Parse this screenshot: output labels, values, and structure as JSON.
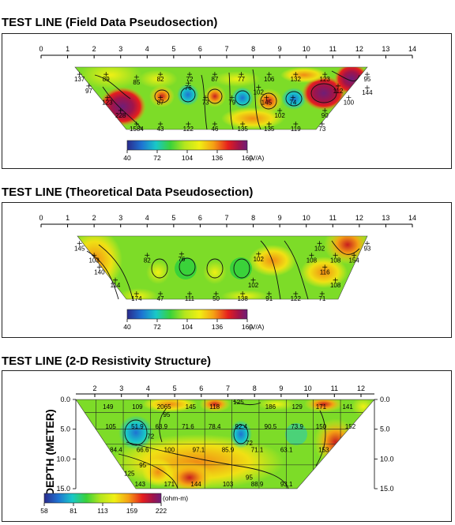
{
  "panels": [
    {
      "title": "TEST LINE (Field Data Pseudosection)"
    },
    {
      "title": "TEST LINE (Theoretical Data Pseudosection)"
    },
    {
      "title": "TEST LINE (2-D Resistivity Structure)"
    }
  ],
  "colors": {
    "scale": [
      "#2a2a8c",
      "#1e73d2",
      "#19c8c8",
      "#3ad23a",
      "#b4e61e",
      "#f0f014",
      "#f5a014",
      "#e61e1e",
      "#a0144b",
      "#6e1e78"
    ]
  },
  "chart_data": [
    {
      "type": "heatmap",
      "title": "TEST LINE (Field Data Pseudosection)",
      "x_ticks": [
        0,
        1,
        2,
        3,
        4,
        5,
        6,
        7,
        8,
        9,
        10,
        11,
        12,
        13,
        14
      ],
      "xlim": [
        0,
        14
      ],
      "colorbar": {
        "ticks": [
          "40",
          "72",
          "104",
          "136",
          "169"
        ],
        "unit": "(V/A)"
      },
      "value_labels": [
        {
          "x": 1.45,
          "level": 0.15,
          "text": "137"
        },
        {
          "x": 2.45,
          "level": 0.15,
          "text": "89"
        },
        {
          "x": 3.6,
          "level": 0.2,
          "text": "85"
        },
        {
          "x": 4.5,
          "level": 0.15,
          "text": "82"
        },
        {
          "x": 5.6,
          "level": 0.15,
          "text": "72"
        },
        {
          "x": 6.55,
          "level": 0.15,
          "text": "87"
        },
        {
          "x": 7.55,
          "level": 0.15,
          "text": "77"
        },
        {
          "x": 8.6,
          "level": 0.15,
          "text": "106"
        },
        {
          "x": 9.6,
          "level": 0.15,
          "text": "132"
        },
        {
          "x": 10.7,
          "level": 0.15,
          "text": "123"
        },
        {
          "x": 12.3,
          "level": 0.15,
          "text": "95"
        },
        {
          "x": 1.8,
          "level": 0.35,
          "text": "97"
        },
        {
          "x": 5.55,
          "level": 0.3,
          "text": "76"
        },
        {
          "x": 11.2,
          "level": 0.35,
          "text": "112"
        },
        {
          "x": 12.3,
          "level": 0.38,
          "text": "144"
        },
        {
          "x": 8.2,
          "level": 0.37,
          "text": "102"
        },
        {
          "x": 2.5,
          "level": 0.55,
          "text": "123"
        },
        {
          "x": 4.5,
          "level": 0.55,
          "text": "87"
        },
        {
          "x": 6.2,
          "level": 0.55,
          "text": "73"
        },
        {
          "x": 7.2,
          "level": 0.55,
          "text": "79"
        },
        {
          "x": 8.5,
          "level": 0.55,
          "text": "145"
        },
        {
          "x": 9.5,
          "level": 0.55,
          "text": "74"
        },
        {
          "x": 11.6,
          "level": 0.55,
          "text": "100"
        },
        {
          "x": 3.0,
          "level": 0.77,
          "text": "228"
        },
        {
          "x": 9.0,
          "level": 0.77,
          "text": "102"
        },
        {
          "x": 10.7,
          "level": 0.77,
          "text": "90"
        },
        {
          "x": 3.6,
          "level": 1.0,
          "text": "1584"
        },
        {
          "x": 4.5,
          "level": 1.0,
          "text": "43"
        },
        {
          "x": 5.55,
          "level": 1.0,
          "text": "122"
        },
        {
          "x": 6.55,
          "level": 1.0,
          "text": "46"
        },
        {
          "x": 7.6,
          "level": 1.0,
          "text": "135"
        },
        {
          "x": 8.6,
          "level": 1.0,
          "text": "135"
        },
        {
          "x": 9.6,
          "level": 1.0,
          "text": "119"
        },
        {
          "x": 10.6,
          "level": 1.0,
          "text": "73"
        }
      ]
    },
    {
      "type": "heatmap",
      "title": "TEST LINE (Theoretical Data Pseudosection)",
      "x_ticks": [
        0,
        1,
        2,
        3,
        4,
        5,
        6,
        7,
        8,
        9,
        10,
        11,
        12,
        13,
        14
      ],
      "xlim": [
        0,
        14
      ],
      "colorbar": {
        "ticks": [
          "40",
          "72",
          "104",
          "136",
          "169"
        ],
        "unit": "(V/A)"
      },
      "value_labels": [
        {
          "x": 1.45,
          "level": 0.15,
          "text": "145"
        },
        {
          "x": 10.5,
          "level": 0.15,
          "text": "102"
        },
        {
          "x": 12.3,
          "level": 0.15,
          "text": "93"
        },
        {
          "x": 2.0,
          "level": 0.35,
          "text": "103"
        },
        {
          "x": 4.0,
          "level": 0.35,
          "text": "82"
        },
        {
          "x": 5.3,
          "level": 0.33,
          "text": "76"
        },
        {
          "x": 11.8,
          "level": 0.35,
          "text": "154"
        },
        {
          "x": 8.2,
          "level": 0.33,
          "text": "102"
        },
        {
          "x": 10.2,
          "level": 0.35,
          "text": "108"
        },
        {
          "x": 11.1,
          "level": 0.35,
          "text": "108"
        },
        {
          "x": 2.2,
          "level": 0.55,
          "text": "140"
        },
        {
          "x": 10.7,
          "level": 0.55,
          "text": "116"
        },
        {
          "x": 2.8,
          "level": 0.77,
          "text": "114"
        },
        {
          "x": 8.0,
          "level": 0.77,
          "text": "102"
        },
        {
          "x": 11.1,
          "level": 0.77,
          "text": "108"
        },
        {
          "x": 3.6,
          "level": 1.0,
          "text": "174"
        },
        {
          "x": 4.5,
          "level": 1.0,
          "text": "47"
        },
        {
          "x": 5.6,
          "level": 1.0,
          "text": "111"
        },
        {
          "x": 6.6,
          "level": 1.0,
          "text": "50"
        },
        {
          "x": 7.6,
          "level": 1.0,
          "text": "138"
        },
        {
          "x": 8.6,
          "level": 1.0,
          "text": "91"
        },
        {
          "x": 9.6,
          "level": 1.0,
          "text": "122"
        },
        {
          "x": 10.6,
          "level": 1.0,
          "text": "71"
        }
      ]
    },
    {
      "type": "heatmap",
      "title": "TEST LINE (2-D Resistivity Structure)",
      "x_ticks": [
        2,
        3,
        4,
        5,
        6,
        7,
        8,
        9,
        10,
        11,
        12
      ],
      "ylabel": "DEPTH (METER)",
      "y_ticks": [
        "0.0",
        "5.0",
        "10.0",
        "15.0"
      ],
      "ylim": [
        0,
        15
      ],
      "colorbar": {
        "ticks": [
          "58",
          "81",
          "113",
          "159",
          "222"
        ],
        "unit": "(ohm-m)"
      },
      "value_labels": [
        {
          "x": 2.5,
          "depth": 1.2,
          "text": "149"
        },
        {
          "x": 3.6,
          "depth": 1.2,
          "text": "109"
        },
        {
          "x": 4.6,
          "depth": 1.2,
          "text": "2065"
        },
        {
          "x": 5.6,
          "depth": 1.2,
          "text": "145"
        },
        {
          "x": 6.5,
          "depth": 1.2,
          "text": "118"
        },
        {
          "x": 7.4,
          "depth": 0.4,
          "text": "125"
        },
        {
          "x": 8.6,
          "depth": 1.2,
          "text": "186"
        },
        {
          "x": 9.6,
          "depth": 1.2,
          "text": "129"
        },
        {
          "x": 10.5,
          "depth": 1.2,
          "text": "171"
        },
        {
          "x": 11.5,
          "depth": 1.2,
          "text": "141"
        },
        {
          "x": 4.7,
          "depth": 2.5,
          "text": "95"
        },
        {
          "x": 2.6,
          "depth": 4.5,
          "text": "105"
        },
        {
          "x": 3.6,
          "depth": 4.5,
          "text": "51.9"
        },
        {
          "x": 4.5,
          "depth": 4.5,
          "text": "63.9"
        },
        {
          "x": 5.5,
          "depth": 4.5,
          "text": "71.6"
        },
        {
          "x": 6.5,
          "depth": 4.5,
          "text": "78.4"
        },
        {
          "x": 7.5,
          "depth": 4.5,
          "text": "92.4"
        },
        {
          "x": 8.6,
          "depth": 4.5,
          "text": "90.5"
        },
        {
          "x": 9.6,
          "depth": 4.5,
          "text": "73.9"
        },
        {
          "x": 10.5,
          "depth": 4.5,
          "text": "150"
        },
        {
          "x": 11.6,
          "depth": 4.5,
          "text": "152"
        },
        {
          "x": 4.1,
          "depth": 6.2,
          "text": "72"
        },
        {
          "x": 7.8,
          "depth": 7.3,
          "text": "72"
        },
        {
          "x": 2.8,
          "depth": 8.4,
          "text": "84.4"
        },
        {
          "x": 3.8,
          "depth": 8.4,
          "text": "66.6"
        },
        {
          "x": 4.8,
          "depth": 8.4,
          "text": "100"
        },
        {
          "x": 5.9,
          "depth": 8.4,
          "text": "97.1"
        },
        {
          "x": 7.0,
          "depth": 8.4,
          "text": "85.9"
        },
        {
          "x": 8.1,
          "depth": 8.4,
          "text": "71.1"
        },
        {
          "x": 9.2,
          "depth": 8.4,
          "text": "63.1"
        },
        {
          "x": 10.6,
          "depth": 8.4,
          "text": "153"
        },
        {
          "x": 3.8,
          "depth": 11.0,
          "text": "95"
        },
        {
          "x": 3.3,
          "depth": 12.4,
          "text": "125"
        },
        {
          "x": 7.8,
          "depth": 13.1,
          "text": "95"
        },
        {
          "x": 3.7,
          "depth": 14.2,
          "text": "143"
        },
        {
          "x": 4.8,
          "depth": 14.2,
          "text": "171"
        },
        {
          "x": 5.8,
          "depth": 14.2,
          "text": "144"
        },
        {
          "x": 7.0,
          "depth": 14.2,
          "text": "103"
        },
        {
          "x": 8.1,
          "depth": 14.2,
          "text": "88.9"
        },
        {
          "x": 9.2,
          "depth": 14.2,
          "text": "93.1"
        }
      ]
    }
  ]
}
